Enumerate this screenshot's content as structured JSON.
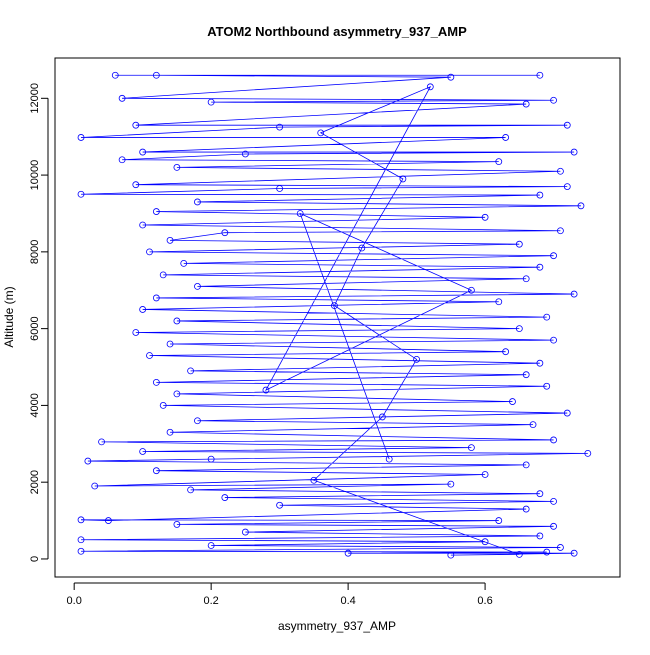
{
  "chart_data": {
    "type": "scatter",
    "title": "ATOM2 Northbound asymmetry_937_AMP",
    "xlabel": "asymmetry_937_AMP",
    "ylabel": "Altitude (m)",
    "xlim": [
      -0.028,
      0.797
    ],
    "ylim": [
      -470,
      13050
    ],
    "xticks": [
      0.0,
      0.2,
      0.4,
      0.6
    ],
    "xtick_labels": [
      "0.0",
      "0.2",
      "0.4",
      "0.6"
    ],
    "yticks": [
      0,
      2000,
      4000,
      6000,
      8000,
      10000,
      12000
    ],
    "ytick_labels": [
      "0",
      "2000",
      "4000",
      "6000",
      "8000",
      "10000",
      "12000"
    ],
    "grid": false,
    "series": [
      {
        "name": "asymmetry_937_AMP",
        "color": "#0000ff",
        "style": "points+lines",
        "points": [
          [
            0.06,
            12600
          ],
          [
            0.68,
            12600
          ],
          [
            0.12,
            12600
          ],
          [
            0.55,
            12550
          ],
          [
            0.07,
            12000
          ],
          [
            0.7,
            11950
          ],
          [
            0.2,
            11900
          ],
          [
            0.66,
            11850
          ],
          [
            0.09,
            11300
          ],
          [
            0.72,
            11300
          ],
          [
            0.3,
            11250
          ],
          [
            0.01,
            10980
          ],
          [
            0.63,
            10980
          ],
          [
            0.1,
            10600
          ],
          [
            0.73,
            10600
          ],
          [
            0.25,
            10550
          ],
          [
            0.07,
            10400
          ],
          [
            0.62,
            10350
          ],
          [
            0.15,
            10200
          ],
          [
            0.71,
            10100
          ],
          [
            0.09,
            9750
          ],
          [
            0.72,
            9700
          ],
          [
            0.3,
            9650
          ],
          [
            0.01,
            9500
          ],
          [
            0.68,
            9480
          ],
          [
            0.18,
            9300
          ],
          [
            0.74,
            9200
          ],
          [
            0.12,
            9050
          ],
          [
            0.6,
            8900
          ],
          [
            0.1,
            8700
          ],
          [
            0.71,
            8550
          ],
          [
            0.22,
            8500
          ],
          [
            0.14,
            8300
          ],
          [
            0.65,
            8200
          ],
          [
            0.11,
            8000
          ],
          [
            0.7,
            7900
          ],
          [
            0.16,
            7700
          ],
          [
            0.68,
            7600
          ],
          [
            0.13,
            7400
          ],
          [
            0.66,
            7300
          ],
          [
            0.18,
            7100
          ],
          [
            0.73,
            6900
          ],
          [
            0.12,
            6800
          ],
          [
            0.62,
            6700
          ],
          [
            0.1,
            6500
          ],
          [
            0.69,
            6300
          ],
          [
            0.15,
            6200
          ],
          [
            0.65,
            6000
          ],
          [
            0.09,
            5900
          ],
          [
            0.7,
            5700
          ],
          [
            0.14,
            5600
          ],
          [
            0.63,
            5400
          ],
          [
            0.11,
            5300
          ],
          [
            0.68,
            5100
          ],
          [
            0.17,
            4900
          ],
          [
            0.66,
            4800
          ],
          [
            0.12,
            4600
          ],
          [
            0.69,
            4500
          ],
          [
            0.15,
            4300
          ],
          [
            0.64,
            4100
          ],
          [
            0.13,
            4000
          ],
          [
            0.72,
            3800
          ],
          [
            0.18,
            3600
          ],
          [
            0.67,
            3500
          ],
          [
            0.14,
            3300
          ],
          [
            0.7,
            3100
          ],
          [
            0.04,
            3050
          ],
          [
            0.58,
            2900
          ],
          [
            0.1,
            2800
          ],
          [
            0.75,
            2750
          ],
          [
            0.2,
            2600
          ],
          [
            0.02,
            2550
          ],
          [
            0.66,
            2450
          ],
          [
            0.12,
            2300
          ],
          [
            0.6,
            2200
          ],
          [
            0.03,
            1900
          ],
          [
            0.55,
            1950
          ],
          [
            0.17,
            1800
          ],
          [
            0.68,
            1700
          ],
          [
            0.22,
            1600
          ],
          [
            0.7,
            1500
          ],
          [
            0.3,
            1400
          ],
          [
            0.66,
            1300
          ],
          [
            0.05,
            1000
          ],
          [
            0.01,
            1020
          ],
          [
            0.62,
            1000
          ],
          [
            0.15,
            900
          ],
          [
            0.7,
            850
          ],
          [
            0.25,
            700
          ],
          [
            0.68,
            600
          ],
          [
            0.01,
            500
          ],
          [
            0.6,
            450
          ],
          [
            0.2,
            350
          ],
          [
            0.71,
            300
          ],
          [
            0.01,
            200
          ],
          [
            0.69,
            180
          ],
          [
            0.4,
            150
          ],
          [
            0.73,
            150
          ],
          [
            0.55,
            100
          ],
          [
            0.65,
            120
          ],
          [
            0.35,
            2050
          ],
          [
            0.45,
            3700
          ],
          [
            0.5,
            5200
          ],
          [
            0.38,
            6600
          ],
          [
            0.42,
            8100
          ],
          [
            0.48,
            9900
          ],
          [
            0.36,
            11100
          ],
          [
            0.52,
            12300
          ],
          [
            0.28,
            4400
          ],
          [
            0.58,
            7000
          ],
          [
            0.33,
            9000
          ],
          [
            0.46,
            2600
          ]
        ]
      }
    ]
  }
}
